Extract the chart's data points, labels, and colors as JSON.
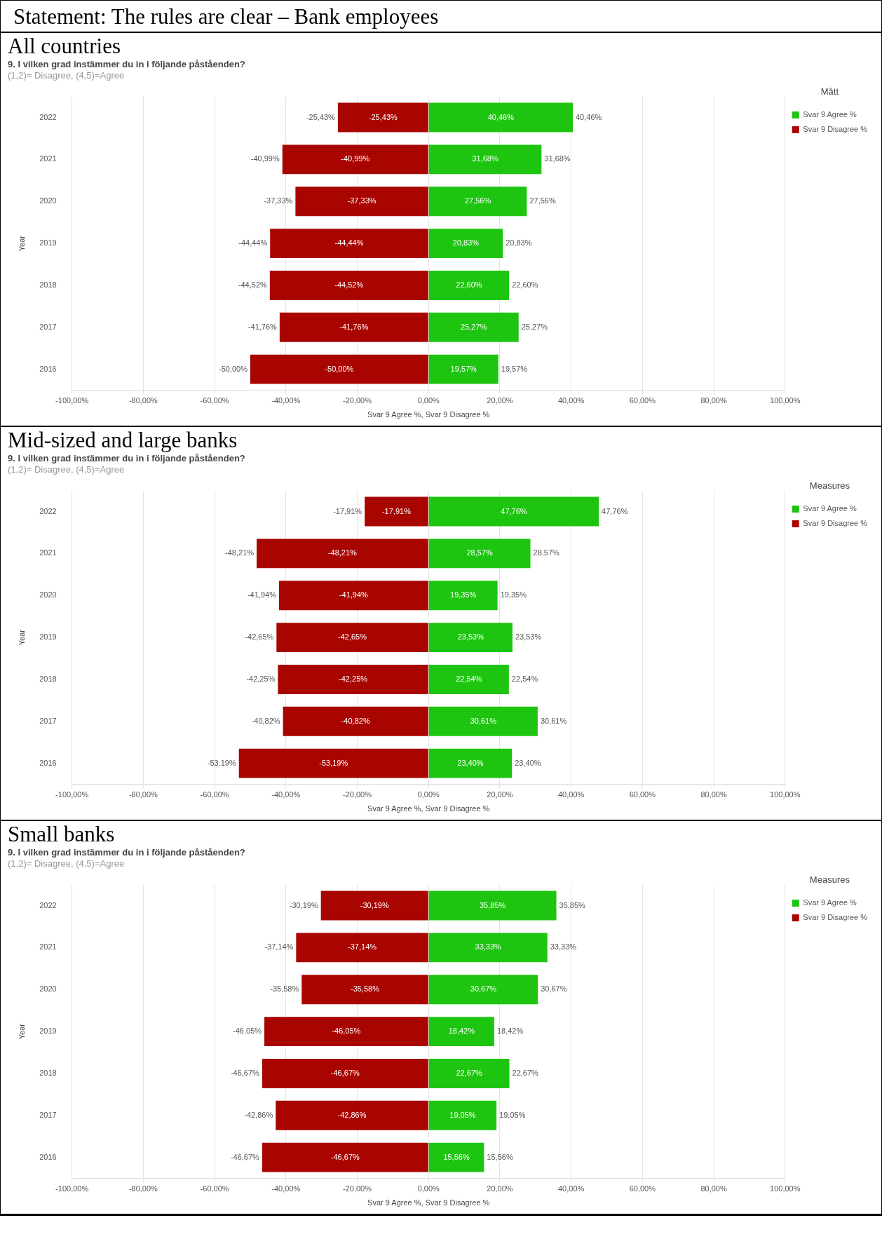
{
  "chart_data": [
    {
      "type": "bar",
      "orientation": "horizontal",
      "stacked": true,
      "title": "All countries",
      "subtitle": "9. I vilken grad instämmer du in i följande påståenden?",
      "annotations": [
        "Statement: The rules are clear – Bank employees",
        "(1,2)= Disagree, (4,5)=Agree"
      ],
      "categories": [
        "2022",
        "2021",
        "2020",
        "2019",
        "2018",
        "2017",
        "2016"
      ],
      "series": [
        {
          "name": "Svar 9 Agree %",
          "color": "#1ec510",
          "values": [
            40.46,
            31.68,
            27.56,
            20.83,
            22.6,
            25.27,
            19.57
          ],
          "value_labels": [
            "40,46%",
            "31,68%",
            "27,56%",
            "20,83%",
            "22,60%",
            "25,27%",
            "19,57%"
          ]
        },
        {
          "name": "Svar 9 Disagree %",
          "color": "#a90500",
          "values": [
            -25.43,
            -40.99,
            -37.33,
            -44.44,
            -44.52,
            -41.76,
            -50.0
          ],
          "value_labels": [
            "-25,43%",
            "-40,99%",
            "-37,33%",
            "-44,44%",
            "-44,52%",
            "-41,76%",
            "-50,00%"
          ]
        }
      ],
      "xlim": [
        -100,
        100
      ],
      "xticks": [
        {
          "value": -100,
          "label": "-100,00%"
        },
        {
          "value": -80,
          "label": "-80,00%"
        },
        {
          "value": -60,
          "label": "-60,00%"
        },
        {
          "value": -40,
          "label": "-40,00%"
        },
        {
          "value": -20,
          "label": "-20,00%"
        },
        {
          "value": 0,
          "label": "0,00%"
        },
        {
          "value": 20,
          "label": "20,00%"
        },
        {
          "value": 40,
          "label": "40,00%"
        },
        {
          "value": 60,
          "label": "60,00%"
        },
        {
          "value": 80,
          "label": "80,00%"
        },
        {
          "value": 100,
          "label": "100,00%"
        }
      ],
      "xlabel": "Svar 9 Agree %, Svar 9 Disagree %",
      "ylabel": "Year",
      "legend_title": "Mått",
      "legend": "top right",
      "grid": "x"
    },
    {
      "type": "bar",
      "orientation": "horizontal",
      "stacked": true,
      "title": "Mid-sized and large banks",
      "subtitle": "9. I vilken grad instämmer du in i följande påståenden?",
      "annotations": [
        "(1,2)= Disagree, (4,5)=Agree"
      ],
      "categories": [
        "2022",
        "2021",
        "2020",
        "2019",
        "2018",
        "2017",
        "2016"
      ],
      "series": [
        {
          "name": "Svar 9 Agree %",
          "color": "#1ec510",
          "values": [
            47.76,
            28.57,
            19.35,
            23.53,
            22.54,
            30.61,
            23.4
          ],
          "value_labels": [
            "47,76%",
            "28,57%",
            "19,35%",
            "23,53%",
            "22,54%",
            "30,61%",
            "23,40%"
          ]
        },
        {
          "name": "Svar 9 Disagree %",
          "color": "#a90500",
          "values": [
            -17.91,
            -48.21,
            -41.94,
            -42.65,
            -42.25,
            -40.82,
            -53.19
          ],
          "value_labels": [
            "-17,91%",
            "-48,21%",
            "-41,94%",
            "-42,65%",
            "-42,25%",
            "-40,82%",
            "-53,19%"
          ]
        }
      ],
      "xlim": [
        -100,
        100
      ],
      "xticks": [
        {
          "value": -100,
          "label": "-100,00%"
        },
        {
          "value": -80,
          "label": "-80,00%"
        },
        {
          "value": -60,
          "label": "-60,00%"
        },
        {
          "value": -40,
          "label": "-40,00%"
        },
        {
          "value": -20,
          "label": "-20,00%"
        },
        {
          "value": 0,
          "label": "0,00%"
        },
        {
          "value": 20,
          "label": "20,00%"
        },
        {
          "value": 40,
          "label": "40,00%"
        },
        {
          "value": 60,
          "label": "60,00%"
        },
        {
          "value": 80,
          "label": "80,00%"
        },
        {
          "value": 100,
          "label": "100,00%"
        }
      ],
      "xlabel": "Svar 9 Agree %, Svar 9 Disagree %",
      "ylabel": "Year",
      "legend_title": "Measures",
      "legend": "top right",
      "grid": "x"
    },
    {
      "type": "bar",
      "orientation": "horizontal",
      "stacked": true,
      "title": "Small banks",
      "subtitle": "9. I vilken grad instämmer du in i följande påståenden?",
      "annotations": [
        "(1,2)= Disagree, (4,5)=Agree"
      ],
      "categories": [
        "2022",
        "2021",
        "2020",
        "2019",
        "2018",
        "2017",
        "2016"
      ],
      "series": [
        {
          "name": "Svar 9 Agree %",
          "color": "#1ec510",
          "values": [
            35.85,
            33.33,
            30.67,
            18.42,
            22.67,
            19.05,
            15.56
          ],
          "value_labels": [
            "35,85%",
            "33,33%",
            "30,67%",
            "18,42%",
            "22,67%",
            "19,05%",
            "15,56%"
          ]
        },
        {
          "name": "Svar 9 Disagree %",
          "color": "#a90500",
          "values": [
            -30.19,
            -37.14,
            -35.58,
            -46.05,
            -46.67,
            -42.86,
            -46.67
          ],
          "value_labels": [
            "-30,19%",
            "-37,14%",
            "-35,58%",
            "-46,05%",
            "-46,67%",
            "-42,86%",
            "-46,67%"
          ]
        }
      ],
      "xlim": [
        -100,
        100
      ],
      "xticks": [
        {
          "value": -100,
          "label": "-100,00%"
        },
        {
          "value": -80,
          "label": "-80,00%"
        },
        {
          "value": -60,
          "label": "-60,00%"
        },
        {
          "value": -40,
          "label": "-40,00%"
        },
        {
          "value": -20,
          "label": "-20,00%"
        },
        {
          "value": 0,
          "label": "0,00%"
        },
        {
          "value": 20,
          "label": "20,00%"
        },
        {
          "value": 40,
          "label": "40,00%"
        },
        {
          "value": 60,
          "label": "60,00%"
        },
        {
          "value": 80,
          "label": "80,00%"
        },
        {
          "value": 100,
          "label": "100,00%"
        }
      ],
      "xlabel": "Svar 9 Agree %, Svar 9 Disagree %",
      "ylabel": "Year",
      "legend_title": "Measures",
      "legend": "top right",
      "grid": "x"
    }
  ]
}
